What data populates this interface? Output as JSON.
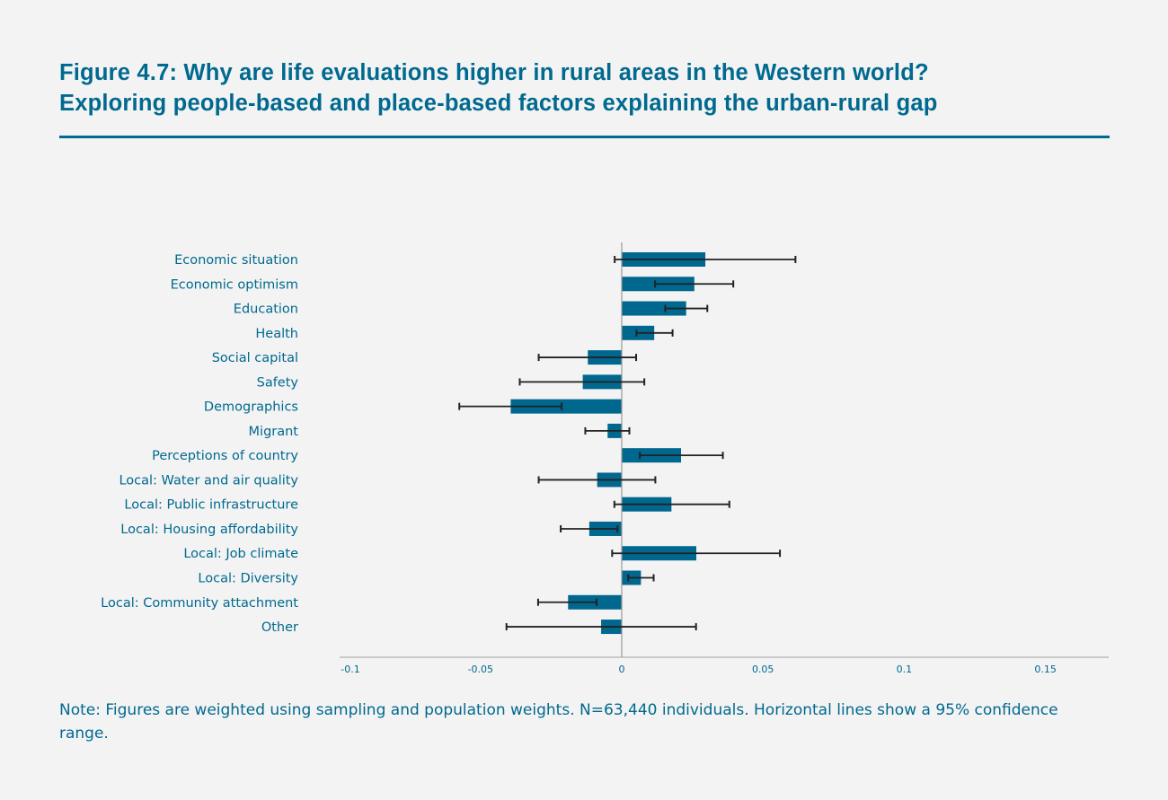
{
  "title": {
    "line1": "Figure 4.7: Why are life evaluations higher in rural areas in the Western world?",
    "line2": "Exploring people-based and place-based factors explaining the urban-rural gap"
  },
  "note": "Note: Figures are weighted using sampling and population weights. N=63,440 individuals. Horizontal lines show a 95% confidence range.",
  "colors": {
    "bar": "#00678f",
    "error_bar": "#222222",
    "axis": "#bbbbbb",
    "text": "#00698f"
  },
  "chart_data": {
    "type": "bar",
    "orientation": "horizontal",
    "error_bars": "95% confidence range",
    "xlim": [
      -0.1,
      0.15
    ],
    "xticks": [
      -0.1,
      -0.05,
      0,
      0.05,
      0.1,
      0.15
    ],
    "xtick_labels": [
      "-0.1",
      "-0.05",
      "0",
      "0.05",
      "0.1",
      "0.15"
    ],
    "grid": false,
    "categories": [
      "Economic situation",
      "Economic optimism",
      "Education",
      "Health",
      "Social capital",
      "Safety",
      "Demographics",
      "Migrant",
      "Perceptions of country",
      "Local: Water and air quality",
      "Local: Public infrastructure",
      "Local: Housing affordability",
      "Local: Job climate",
      "Local: Diversity",
      "Local: Community attachment",
      "Other"
    ],
    "values": [
      0.0296,
      0.0257,
      0.0228,
      0.0115,
      -0.012,
      -0.0138,
      -0.0393,
      -0.005,
      0.021,
      -0.0087,
      0.0176,
      -0.0115,
      0.0264,
      0.0068,
      -0.019,
      -0.0073
    ],
    "ci_low": [
      -0.0025,
      0.0118,
      0.0154,
      0.0052,
      -0.0294,
      -0.0361,
      -0.0575,
      -0.0129,
      0.0064,
      -0.0294,
      -0.0026,
      -0.0216,
      -0.0034,
      0.0023,
      -0.0296,
      -0.0408
    ],
    "ci_high": [
      0.0615,
      0.0395,
      0.0303,
      0.018,
      0.0051,
      0.008,
      -0.0213,
      0.0027,
      0.0358,
      0.0119,
      0.0381,
      -0.0015,
      0.056,
      0.0113,
      -0.0089,
      0.0263
    ]
  }
}
